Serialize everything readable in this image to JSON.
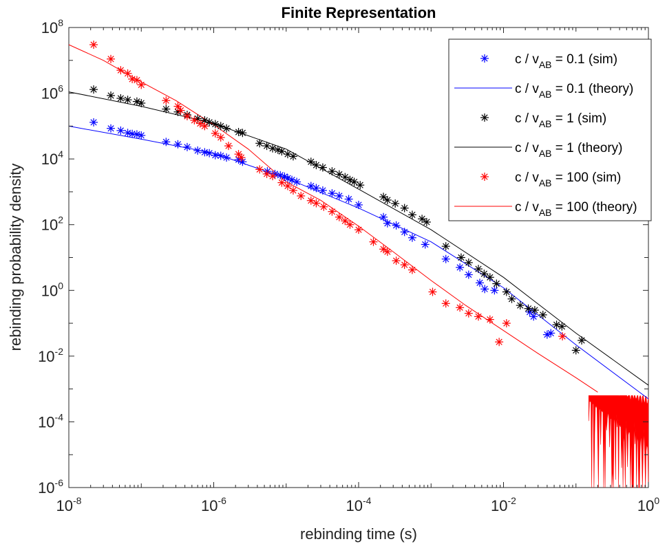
{
  "chart_data": {
    "type": "scatter",
    "title": "Finite Representation",
    "xlabel": "rebinding time (s)",
    "ylabel": "rebinding probability density",
    "xscale": "log",
    "yscale": "log",
    "xlim": [
      1e-08,
      1
    ],
    "ylim": [
      1e-06,
      100000000.0
    ],
    "x_ticks": [
      {
        "base": "10",
        "exp": "-8"
      },
      {
        "base": "10",
        "exp": "-6"
      },
      {
        "base": "10",
        "exp": "-4"
      },
      {
        "base": "10",
        "exp": "-2"
      },
      {
        "base": "10",
        "exp": "0"
      }
    ],
    "y_ticks": [
      {
        "base": "10",
        "exp": "-6"
      },
      {
        "base": "10",
        "exp": "-4"
      },
      {
        "base": "10",
        "exp": "-2"
      },
      {
        "base": "10",
        "exp": "0"
      },
      {
        "base": "10",
        "exp": "2"
      },
      {
        "base": "10",
        "exp": "4"
      },
      {
        "base": "10",
        "exp": "6"
      },
      {
        "base": "10",
        "exp": "8"
      }
    ],
    "grid": false,
    "legend_position": "top-right",
    "series": [
      {
        "name": "c / vAB = 0.1 (sim)",
        "label_parts": [
          "c / v",
          "AB",
          " = 0.1 (sim)"
        ],
        "kind": "marker",
        "marker": "asterisk",
        "color": "#0000ff",
        "x": [
          2.2e-08,
          3.8e-08,
          5.2e-08,
          6.5e-08,
          7.5e-08,
          8.7e-08,
          1e-07,
          2.2e-07,
          3.2e-07,
          4.3e-07,
          6e-07,
          7.5e-07,
          8.7e-07,
          1.05e-06,
          1.25e-06,
          1.5e-06,
          2.2e-06,
          2.5e-06,
          5.5e-06,
          7e-06,
          8.3e-06,
          9.5e-06,
          1.05e-05,
          1.2e-05,
          1.4e-05,
          2.2e-05,
          2.6e-05,
          3.2e-05,
          4.3e-05,
          5.4e-05,
          7.3e-05,
          0.0001,
          0.00022,
          0.00025,
          0.00033,
          0.00043,
          0.00055,
          0.00083,
          0.0016,
          0.0025,
          0.0033,
          0.0047,
          0.0055,
          0.0075,
          0.023,
          0.026,
          0.04,
          0.045
        ],
        "y": [
          130000.0,
          85000.0,
          73000.0,
          62000.0,
          58000.0,
          56000.0,
          52000.0,
          33000.0,
          28000.0,
          23000.0,
          18000.0,
          16000.0,
          15000.0,
          13000.0,
          12500.0,
          11000.0,
          9500.0,
          8200.0,
          4200.0,
          3500.0,
          3200.0,
          2900.0,
          2600.0,
          2300.0,
          2000.0,
          1500.0,
          1300.0,
          1100.0,
          900,
          750,
          600,
          400,
          170,
          110,
          95,
          60,
          40,
          25,
          9,
          5,
          3,
          1.7,
          1.1,
          1.0,
          0.22,
          0.16,
          0.045,
          0.05
        ]
      },
      {
        "name": "c / vAB = 0.1 (theory)",
        "label_parts": [
          "c / v",
          "AB",
          " = 0.1 (theory)"
        ],
        "kind": "line",
        "color": "#0000ff",
        "x": [
          1e-08,
          1e-07,
          1e-06,
          3e-06,
          1e-05,
          0.0001,
          0.001,
          0.01,
          0.1,
          1
        ],
        "y": [
          100000.0,
          40000.0,
          15000.0,
          6500.0,
          2600.0,
          320,
          30,
          1.2,
          0.022,
          0.0005
        ]
      },
      {
        "name": "c / vAB = 1 (sim)",
        "label_parts": [
          "c / v",
          "AB",
          " = 1 (sim)"
        ],
        "kind": "marker",
        "marker": "asterisk",
        "color": "#000000",
        "x": [
          2.2e-08,
          3.8e-08,
          5.2e-08,
          6.5e-08,
          8.7e-08,
          1e-07,
          2.2e-07,
          3.2e-07,
          4.3e-07,
          6e-07,
          7.5e-07,
          8.7e-07,
          1.05e-06,
          1.25e-06,
          1.5e-06,
          2.2e-06,
          2.5e-06,
          4.3e-06,
          5.4e-06,
          6.5e-06,
          7.7e-06,
          8.7e-06,
          1.05e-05,
          1.25e-05,
          2.2e-05,
          2.6e-05,
          3.2e-05,
          4.3e-05,
          5.4e-05,
          6.5e-05,
          7.6e-05,
          8.7e-05,
          0.000105,
          0.00022,
          0.00025,
          0.00032,
          0.00043,
          0.00055,
          0.00075,
          0.00087,
          0.0016,
          0.0026,
          0.0033,
          0.0045,
          0.0054,
          0.0065,
          0.008,
          0.011,
          0.013,
          0.017,
          0.022,
          0.027,
          0.035,
          0.054,
          0.064,
          0.12,
          0.1
        ],
        "y": [
          1300000.0,
          850000.0,
          700000.0,
          630000.0,
          560000.0,
          500000.0,
          330000.0,
          270000.0,
          220000.0,
          170000.0,
          150000.0,
          130000.0,
          115000.0,
          100000.0,
          85000.0,
          66000.0,
          62000.0,
          30000.0,
          25000.0,
          21000.0,
          19000.0,
          17000.0,
          14000.0,
          12000.0,
          8200.0,
          6500.0,
          5500.0,
          4200.0,
          3400.0,
          2800.0,
          2300.0,
          2000.0,
          1600.0,
          700,
          560,
          440,
          320,
          200,
          150,
          120,
          22,
          10,
          7,
          4.5,
          3.2,
          2.5,
          1.6,
          0.9,
          0.55,
          0.35,
          0.28,
          0.25,
          0.18,
          0.09,
          0.08,
          0.03,
          0.015
        ]
      },
      {
        "name": "c / vAB = 1 (theory)",
        "label_parts": [
          "c / v",
          "AB",
          " = 1 (theory)"
        ],
        "kind": "line",
        "color": "#000000",
        "x": [
          1e-08,
          1e-07,
          1e-06,
          1e-05,
          0.0001,
          0.001,
          0.01,
          0.1,
          1
        ],
        "y": [
          1100000.0,
          400000.0,
          120000.0,
          20000.0,
          1200.0,
          70,
          2.5,
          0.05,
          0.0013
        ]
      },
      {
        "name": "c / vAB = 100 (sim)",
        "label_parts": [
          "c / v",
          "AB",
          " = 100 (sim)"
        ],
        "kind": "marker",
        "marker": "asterisk",
        "color": "#ff0000",
        "x": [
          2.2e-08,
          3.8e-08,
          5.2e-08,
          6.5e-08,
          7.5e-08,
          8.7e-08,
          1e-07,
          2.2e-07,
          3.2e-07,
          3.5e-07,
          4.3e-07,
          5.4e-07,
          6.5e-07,
          7.5e-07,
          1.05e-06,
          1.25e-06,
          1.6e-06,
          2.2e-06,
          2.4e-06,
          4.3e-06,
          5.4e-06,
          6.5e-06,
          8.7e-06,
          1.05e-05,
          1.25e-05,
          1.6e-05,
          2.2e-05,
          2.6e-05,
          3.3e-05,
          4.3e-05,
          5.4e-05,
          6.5e-05,
          7.6e-05,
          0.0001,
          0.00016,
          0.00022,
          0.00025,
          0.00033,
          0.00043,
          0.00055,
          0.00105,
          0.0016,
          0.0025,
          0.0033,
          0.0045,
          0.0065,
          0.0087,
          0.011,
          0.065
        ],
        "y": [
          30000000.0,
          11000000.0,
          5000000.0,
          4000000.0,
          2700000.0,
          2500000.0,
          1800000.0,
          600000.0,
          400000.0,
          300000.0,
          200000.0,
          150000.0,
          120000.0,
          100000.0,
          60000.0,
          45000.0,
          25000.0,
          14000.0,
          11000.0,
          4800.0,
          3500.0,
          3000.0,
          1900.0,
          1500.0,
          1100.0,
          750,
          540,
          450,
          350,
          250,
          170,
          130,
          100,
          70,
          30,
          18,
          15,
          8,
          6,
          4.2,
          0.9,
          0.4,
          0.3,
          0.2,
          0.16,
          0.13,
          0.027,
          0.1,
          0.04
        ]
      },
      {
        "name": "c / vAB = 100 (theory)",
        "label_parts": [
          "c / v",
          "AB",
          " = 100 (theory)"
        ],
        "kind": "line",
        "color": "#ff0000",
        "x": [
          1e-08,
          3e-08,
          1e-07,
          3e-07,
          1e-06,
          3e-06,
          1e-05,
          3e-05,
          0.0001,
          0.0003,
          0.001,
          0.003,
          0.01,
          0.03,
          0.1,
          0.2
        ],
        "y": [
          30000000.0,
          10000000.0,
          2200000.0,
          600000.0,
          110000.0,
          20000.0,
          2000.0,
          550,
          90,
          15,
          2.0,
          0.35,
          0.06,
          0.012,
          0.0022,
          0.0008
        ]
      }
    ],
    "noise_region": {
      "color": "#ff0000",
      "x_range": [
        0.15,
        1
      ],
      "y_floor": 1e-06
    }
  }
}
